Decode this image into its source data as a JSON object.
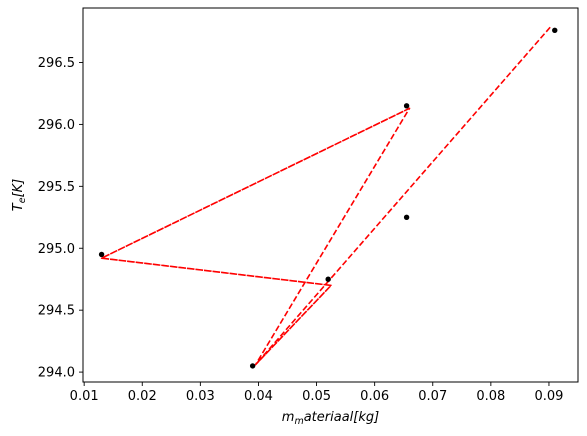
{
  "chart_data": {
    "type": "scatter",
    "title": "",
    "xlabel": {
      "main": "m",
      "sub": "m",
      "rest": "ateriaal[kg]"
    },
    "ylabel": {
      "main": "T",
      "sub": "e",
      "rest": "[K]"
    },
    "xlim": [
      0.0098,
      0.095
    ],
    "ylim": [
      293.92,
      296.94
    ],
    "xticks": [
      0.01,
      0.02,
      0.03,
      0.04,
      0.05,
      0.06,
      0.07,
      0.08,
      0.09
    ],
    "xtick_labels": [
      "0.01",
      "0.02",
      "0.03",
      "0.04",
      "0.05",
      "0.06",
      "0.07",
      "0.08",
      "0.09"
    ],
    "yticks": [
      294.0,
      294.5,
      295.0,
      295.5,
      296.0,
      296.5
    ],
    "ytick_labels": [
      "294.0",
      "294.5",
      "295.0",
      "295.5",
      "296.0",
      "296.5"
    ],
    "grid": false,
    "series": [
      {
        "style": "markers",
        "color": "#000000",
        "x": [
          0.013,
          0.052,
          0.039,
          0.0655,
          0.0655,
          0.091
        ],
        "y": [
          294.95,
          294.75,
          294.05,
          296.15,
          295.25,
          296.76
        ]
      },
      {
        "style": "dashed-line",
        "color": "#ff0000",
        "x": [
          0.066,
          0.013,
          0.0525,
          0.0395,
          0.066,
          0.013,
          0.0525,
          0.0395,
          0.0905
        ],
        "y": [
          296.13,
          294.92,
          294.7,
          294.06,
          296.13,
          294.92,
          294.7,
          294.06,
          296.8
        ]
      }
    ]
  }
}
